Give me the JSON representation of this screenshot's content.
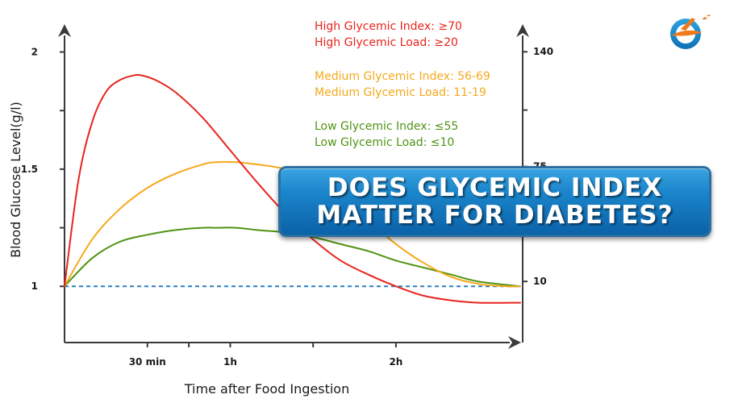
{
  "colors": {
    "high": "#e8241f",
    "medium": "#f6a81c",
    "low": "#4f9313",
    "baseline": "#2a7fc0",
    "axis": "#3a3a3a"
  },
  "chart_data": {
    "type": "line",
    "xlabel": "Time after Food Ingestion",
    "ylabel": "Blood Glucose Level(g/l)",
    "x_ticks": [
      {
        "label": "30 min",
        "x": 30
      },
      {
        "label": "1h",
        "x": 60
      },
      {
        "label": "2h",
        "x": 120
      }
    ],
    "xlim": [
      0,
      165
    ],
    "y_left_ticks": [
      {
        "label": "2",
        "value": 2
      },
      {
        "label": "1.5",
        "value": 1.5
      },
      {
        "label": "1",
        "value": 1
      }
    ],
    "y_left_minor": [
      1.25,
      1.75
    ],
    "ylim": [
      0.76,
      2.05
    ],
    "y_right_ticks": [
      {
        "label": "140",
        "value": 140
      },
      {
        "label": "75",
        "value": 75
      },
      {
        "label": "10",
        "value": 10
      }
    ],
    "y_right_lim": [
      -24.6,
      146.5
    ],
    "baseline": 1,
    "series": [
      {
        "key": "high",
        "x": [
          0,
          5,
          10,
          15,
          20,
          25,
          28,
          33,
          40,
          50,
          60,
          70,
          80,
          90,
          100,
          110,
          120,
          130,
          140,
          150,
          165
        ],
        "values": [
          1,
          1.45,
          1.7,
          1.83,
          1.88,
          1.9,
          1.9,
          1.88,
          1.83,
          1.72,
          1.58,
          1.44,
          1.31,
          1.2,
          1.11,
          1.05,
          1.0,
          0.96,
          0.94,
          0.93,
          0.93
        ]
      },
      {
        "key": "medium",
        "x": [
          0,
          10,
          20,
          30,
          40,
          50,
          55,
          62,
          70,
          80,
          90,
          100,
          110,
          120,
          130,
          140,
          150,
          160,
          165
        ],
        "values": [
          1,
          1.2,
          1.33,
          1.42,
          1.48,
          1.52,
          1.53,
          1.53,
          1.52,
          1.5,
          1.45,
          1.38,
          1.28,
          1.18,
          1.1,
          1.04,
          1.01,
          1.0,
          1.0
        ]
      },
      {
        "key": "low",
        "x": [
          0,
          10,
          20,
          30,
          40,
          50,
          55,
          62,
          70,
          80,
          90,
          100,
          110,
          120,
          130,
          140,
          150,
          165
        ],
        "values": [
          1,
          1.12,
          1.19,
          1.22,
          1.24,
          1.25,
          1.25,
          1.25,
          1.24,
          1.23,
          1.21,
          1.18,
          1.15,
          1.11,
          1.08,
          1.05,
          1.02,
          1.0
        ]
      }
    ],
    "legend": [
      {
        "key": "high",
        "lines": [
          "High Glycemic Index: ≥70",
          "High Glycemic Load:  ≥20"
        ]
      },
      {
        "key": "medium",
        "lines": [
          "Medium Glycemic Index: 56-69",
          "Medium Glycemic Load:  11-19"
        ]
      },
      {
        "key": "low",
        "lines": [
          "Low Glycemic Index: ≤55",
          "Low Glycemic Load:  ≤10"
        ]
      }
    ]
  },
  "banner": {
    "line1": "DOES GLYCEMIC INDEX",
    "line2": "MATTER FOR DIABETES?"
  },
  "logo": {
    "icon": "stork-logo-icon"
  }
}
